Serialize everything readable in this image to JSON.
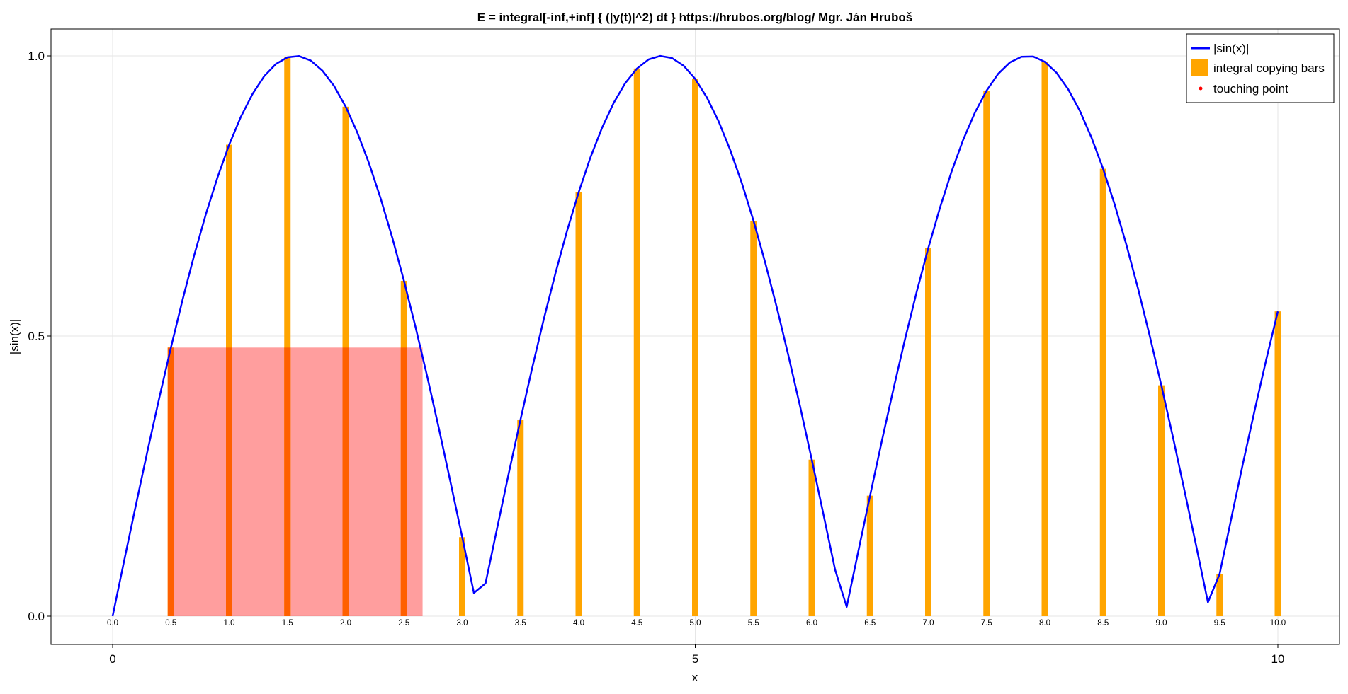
{
  "chart_data": {
    "type": "line",
    "title": "E = integral[-inf,+inf] { (|y(t)|^2) dt }   https://hrubos.org/blog/  Mgr. Ján Hruboš",
    "xlabel": "x",
    "ylabel": "|sin(x)|",
    "xlim": [
      -0.52,
      10.52
    ],
    "ylim": [
      -0.05,
      1.05
    ],
    "grid": true,
    "legend_position": "top-right",
    "x_ticks": [
      "0",
      "5",
      "10"
    ],
    "x_tick_values": [
      0,
      5,
      10
    ],
    "y_ticks": [
      "0.0",
      "0.5",
      "1.0"
    ],
    "y_tick_values": [
      0,
      0.5,
      1.0
    ],
    "bar_tick_labels": [
      "0.0",
      "0.5",
      "1.0",
      "1.5",
      "2.0",
      "2.5",
      "3.0",
      "3.5",
      "4.0",
      "4.5",
      "5.0",
      "5.5",
      "6.0",
      "6.5",
      "7.0",
      "7.5",
      "8.0",
      "8.5",
      "9.0",
      "9.5",
      "10.0"
    ],
    "series": [
      {
        "name": "|sin(x)|",
        "kind": "line",
        "color": "#0000ff",
        "x": [
          0.0,
          0.1,
          0.2,
          0.3,
          0.4,
          0.5,
          0.6,
          0.7,
          0.8,
          0.9,
          1.0,
          1.1,
          1.2,
          1.3,
          1.4,
          1.5,
          1.6,
          1.7,
          1.8,
          1.9,
          2.0,
          2.1,
          2.2,
          2.3,
          2.4,
          2.5,
          2.6,
          2.7,
          2.8,
          2.9,
          3.0,
          3.1,
          3.2,
          3.3,
          3.4,
          3.5,
          3.6,
          3.7,
          3.8,
          3.9,
          4.0,
          4.1,
          4.2,
          4.3,
          4.4,
          4.5,
          4.6,
          4.7,
          4.8,
          4.9,
          5.0,
          5.1,
          5.2,
          5.3,
          5.4,
          5.5,
          5.6,
          5.7,
          5.8,
          5.9,
          6.0,
          6.1,
          6.2,
          6.3,
          6.4,
          6.5,
          6.6,
          6.7,
          6.8,
          6.9,
          7.0,
          7.1,
          7.2,
          7.3,
          7.4,
          7.5,
          7.6,
          7.7,
          7.8,
          7.9,
          8.0,
          8.1,
          8.2,
          8.3,
          8.4,
          8.5,
          8.6,
          8.7,
          8.8,
          8.9,
          9.0,
          9.1,
          9.2,
          9.3,
          9.4,
          9.5,
          9.6,
          9.7,
          9.8,
          9.9,
          10.0
        ],
        "y": [
          0.0,
          0.0998,
          0.1987,
          0.2955,
          0.3894,
          0.4794,
          0.5646,
          0.6442,
          0.7174,
          0.7833,
          0.8415,
          0.8912,
          0.932,
          0.9636,
          0.9854,
          0.9975,
          0.9996,
          0.9917,
          0.9738,
          0.9463,
          0.9093,
          0.8632,
          0.8085,
          0.7457,
          0.6755,
          0.5985,
          0.5155,
          0.4274,
          0.335,
          0.2392,
          0.1411,
          0.0416,
          0.0584,
          0.1577,
          0.2555,
          0.3508,
          0.4425,
          0.5298,
          0.6119,
          0.6878,
          0.7568,
          0.8183,
          0.8716,
          0.9162,
          0.9516,
          0.9775,
          0.9937,
          0.9999,
          0.9962,
          0.9825,
          0.9589,
          0.9258,
          0.8835,
          0.8323,
          0.7728,
          0.7055,
          0.6313,
          0.5507,
          0.4646,
          0.3739,
          0.2794,
          0.1822,
          0.0831,
          0.0168,
          0.1165,
          0.2151,
          0.3115,
          0.4048,
          0.4941,
          0.5784,
          0.657,
          0.729,
          0.7937,
          0.8504,
          0.8987,
          0.938,
          0.968,
          0.9882,
          0.9985,
          0.9989,
          0.9894,
          0.9699,
          0.9407,
          0.9022,
          0.8546,
          0.7985,
          0.7344,
          0.663,
          0.5849,
          0.501,
          0.4121,
          0.319,
          0.2229,
          0.1245,
          0.0248,
          0.0752,
          0.1743,
          0.2718,
          0.3665,
          0.4575,
          0.544
        ]
      },
      {
        "name": "integral copying bars",
        "kind": "bar",
        "color": "#ffa500",
        "x": [
          0.5,
          1.0,
          1.5,
          2.0,
          2.5,
          3.0,
          3.5,
          4.0,
          4.5,
          5.0,
          5.5,
          6.0,
          6.5,
          7.0,
          7.5,
          8.0,
          8.5,
          9.0,
          9.5,
          10.0
        ],
        "y": [
          0.4794,
          0.8415,
          0.9975,
          0.9093,
          0.5985,
          0.1411,
          0.3508,
          0.7568,
          0.9775,
          0.9589,
          0.7055,
          0.2794,
          0.2151,
          0.657,
          0.938,
          0.9894,
          0.7985,
          0.4121,
          0.0752,
          0.544
        ]
      },
      {
        "name": "touching point",
        "kind": "scatter",
        "color": "#ff0000",
        "x": [],
        "y": []
      }
    ],
    "highlight_rectangle": {
      "color": "#ff0000",
      "opacity": 0.38,
      "x": [
        0.5,
        2.66
      ],
      "y": [
        0,
        0.4794
      ]
    }
  }
}
